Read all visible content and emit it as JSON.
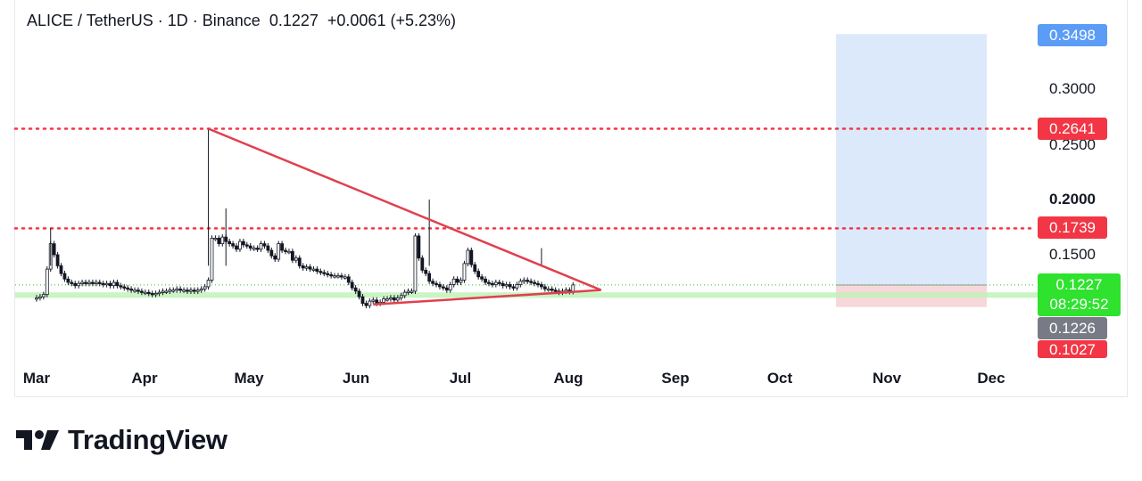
{
  "header": {
    "symbol": "ALICE / TetherUS · 1D · Binance",
    "last": "0.1227",
    "change": "+0.0061 (+5.23%)"
  },
  "price_axis": {
    "labels": [
      "0.3000",
      "0.2500",
      "0.2000",
      "0.1500"
    ],
    "tags": {
      "target": {
        "text": "0.3498",
        "color": "#5b9cf6"
      },
      "resistance_high": {
        "text": "0.2641",
        "color": "#f23645"
      },
      "resistance_mid": {
        "text": "0.1739",
        "color": "#f23645"
      },
      "last_price": {
        "text": "0.1227",
        "color": "#22dd22"
      },
      "countdown": {
        "text": "08:29:52",
        "color": "#22dd22"
      },
      "entry": {
        "text": "0.1226",
        "color": "#787b86"
      },
      "stop": {
        "text": "0.1027",
        "color": "#f23645"
      }
    }
  },
  "time_axis": {
    "months": [
      "Mar",
      "Apr",
      "May",
      "Jun",
      "Jul",
      "Aug",
      "Sep",
      "Oct",
      "Nov",
      "Dec"
    ]
  },
  "brand": {
    "name": "TradingView"
  },
  "chart_data": {
    "type": "candlestick",
    "symbol": "ALICE/USDT",
    "interval": "1D",
    "exchange": "Binance",
    "last_price": 0.1227,
    "change": 0.0061,
    "change_pct": 5.23,
    "y_axis_ticks": [
      0.3,
      0.25,
      0.2,
      0.15
    ],
    "x_axis_ticks": [
      "Mar",
      "Apr",
      "May",
      "Jun",
      "Jul",
      "Aug",
      "Sep",
      "Oct",
      "Nov",
      "Dec"
    ],
    "horizontal_levels": [
      {
        "price": 0.2641,
        "style": "dotted",
        "color": "#f23645"
      },
      {
        "price": 0.1739,
        "style": "dotted",
        "color": "#f23645"
      }
    ],
    "support_zone": {
      "from": 0.111,
      "to": 0.116,
      "color": "#b7f0b0"
    },
    "triangle": {
      "upper": [
        {
          "date": "Apr 19",
          "price": 0.2641
        },
        {
          "date": "Aug 9",
          "price": 0.118
        }
      ],
      "lower": [
        {
          "date": "Jun 5",
          "price": 0.105
        },
        {
          "date": "Aug 9",
          "price": 0.118
        }
      ]
    },
    "position": {
      "target": 0.3498,
      "entry": 0.1226,
      "stop": 0.1027,
      "start": "Oct 15",
      "end": "Nov 27"
    },
    "series": [
      {
        "segment": "Mar",
        "close": [
          0.111,
          0.112,
          0.114,
          0.137,
          0.16,
          0.15,
          0.14,
          0.133,
          0.128,
          0.125,
          0.124,
          0.122,
          0.124,
          0.125,
          0.124,
          0.125,
          0.124,
          0.125,
          0.124,
          0.123,
          0.124,
          0.122,
          0.125,
          0.122,
          0.121,
          0.12,
          0.119,
          0.118,
          0.118,
          0.117,
          0.116
        ]
      },
      {
        "segment": "Apr",
        "close": [
          0.116,
          0.115,
          0.114,
          0.115,
          0.116,
          0.117,
          0.117,
          0.118,
          0.118,
          0.119,
          0.118,
          0.118,
          0.117,
          0.118,
          0.117,
          0.118,
          0.119,
          0.121,
          0.127,
          0.165,
          0.165,
          0.16,
          0.166,
          0.162,
          0.16,
          0.158,
          0.155,
          0.162,
          0.159,
          0.158
        ]
      },
      {
        "segment": "May",
        "close": [
          0.156,
          0.156,
          0.155,
          0.16,
          0.158,
          0.154,
          0.149,
          0.146,
          0.16,
          0.154,
          0.153,
          0.153,
          0.145,
          0.147,
          0.14,
          0.138,
          0.139,
          0.137,
          0.137,
          0.135,
          0.134,
          0.133,
          0.132,
          0.131,
          0.131,
          0.131,
          0.13,
          0.13,
          0.125,
          0.12,
          0.117
        ]
      },
      {
        "segment": "Jun",
        "close": [
          0.112,
          0.106,
          0.104,
          0.108,
          0.109,
          0.106,
          0.107,
          0.11,
          0.11,
          0.111,
          0.109,
          0.111,
          0.113,
          0.116,
          0.117,
          0.117,
          0.167,
          0.147,
          0.136,
          0.133,
          0.126,
          0.124,
          0.123,
          0.121,
          0.12,
          0.118,
          0.123,
          0.128,
          0.125,
          0.127
        ]
      },
      {
        "segment": "Jul",
        "close": [
          0.142,
          0.154,
          0.141,
          0.135,
          0.13,
          0.128,
          0.125,
          0.124,
          0.123,
          0.125,
          0.124,
          0.122,
          0.123,
          0.121,
          0.12,
          0.123,
          0.126,
          0.127,
          0.126,
          0.125,
          0.124,
          0.123,
          0.121,
          0.119,
          0.119,
          0.118,
          0.117,
          0.116,
          0.117,
          0.118,
          0.1166
        ]
      },
      {
        "segment": "Aug",
        "close": [
          0.1227
        ]
      }
    ]
  }
}
